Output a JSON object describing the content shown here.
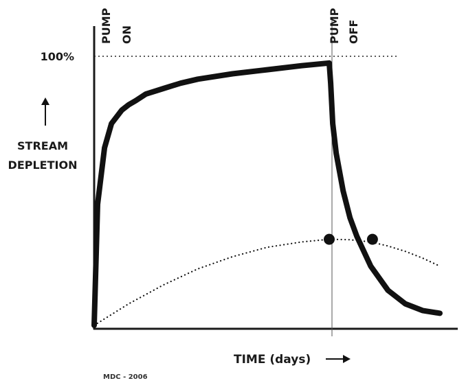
{
  "chart_data": {
    "type": "line",
    "title": "",
    "xlabel": "TIME (days)",
    "ylabel_lines": [
      "STREAM",
      "DEPLETION"
    ],
    "y_tick_label": "100%",
    "xlim": [
      0,
      100
    ],
    "ylim": [
      0,
      100
    ],
    "annotations": {
      "pump_on": [
        "PUMP",
        "ON"
      ],
      "pump_off": [
        "PUMP",
        "OFF"
      ]
    },
    "pump_on_x": 0,
    "pump_off_x": 68,
    "series": [
      {
        "style": "solid-thick",
        "x": [
          0,
          1,
          3,
          5,
          8,
          10,
          12,
          15,
          20,
          25,
          30,
          40,
          50,
          60,
          68,
          68.4,
          69,
          70,
          72,
          74,
          76,
          80,
          85,
          90,
          95,
          100
        ],
        "y": [
          0,
          45,
          66,
          75,
          80,
          82,
          83.5,
          86,
          88,
          90,
          91.5,
          93.5,
          95,
          96.5,
          97.5,
          90,
          75,
          64,
          50,
          40,
          33,
          22,
          13,
          8,
          5.5,
          4.5
        ]
      },
      {
        "style": "dotted",
        "x": [
          0,
          10,
          20,
          30,
          40,
          50,
          60,
          68,
          74,
          80,
          85,
          90,
          95,
          100
        ],
        "y": [
          0,
          8,
          15,
          21,
          25.5,
          29,
          31,
          32,
          31.8,
          31,
          29.5,
          27.5,
          25,
          22
        ]
      }
    ],
    "markers": [
      {
        "x": 68,
        "y": 32
      },
      {
        "x": 80.5,
        "y": 32
      }
    ],
    "credit": "MDC - 2006",
    "colors": {
      "line": "#111111",
      "axis": "#1a1a1a",
      "guide": "#555555"
    }
  }
}
